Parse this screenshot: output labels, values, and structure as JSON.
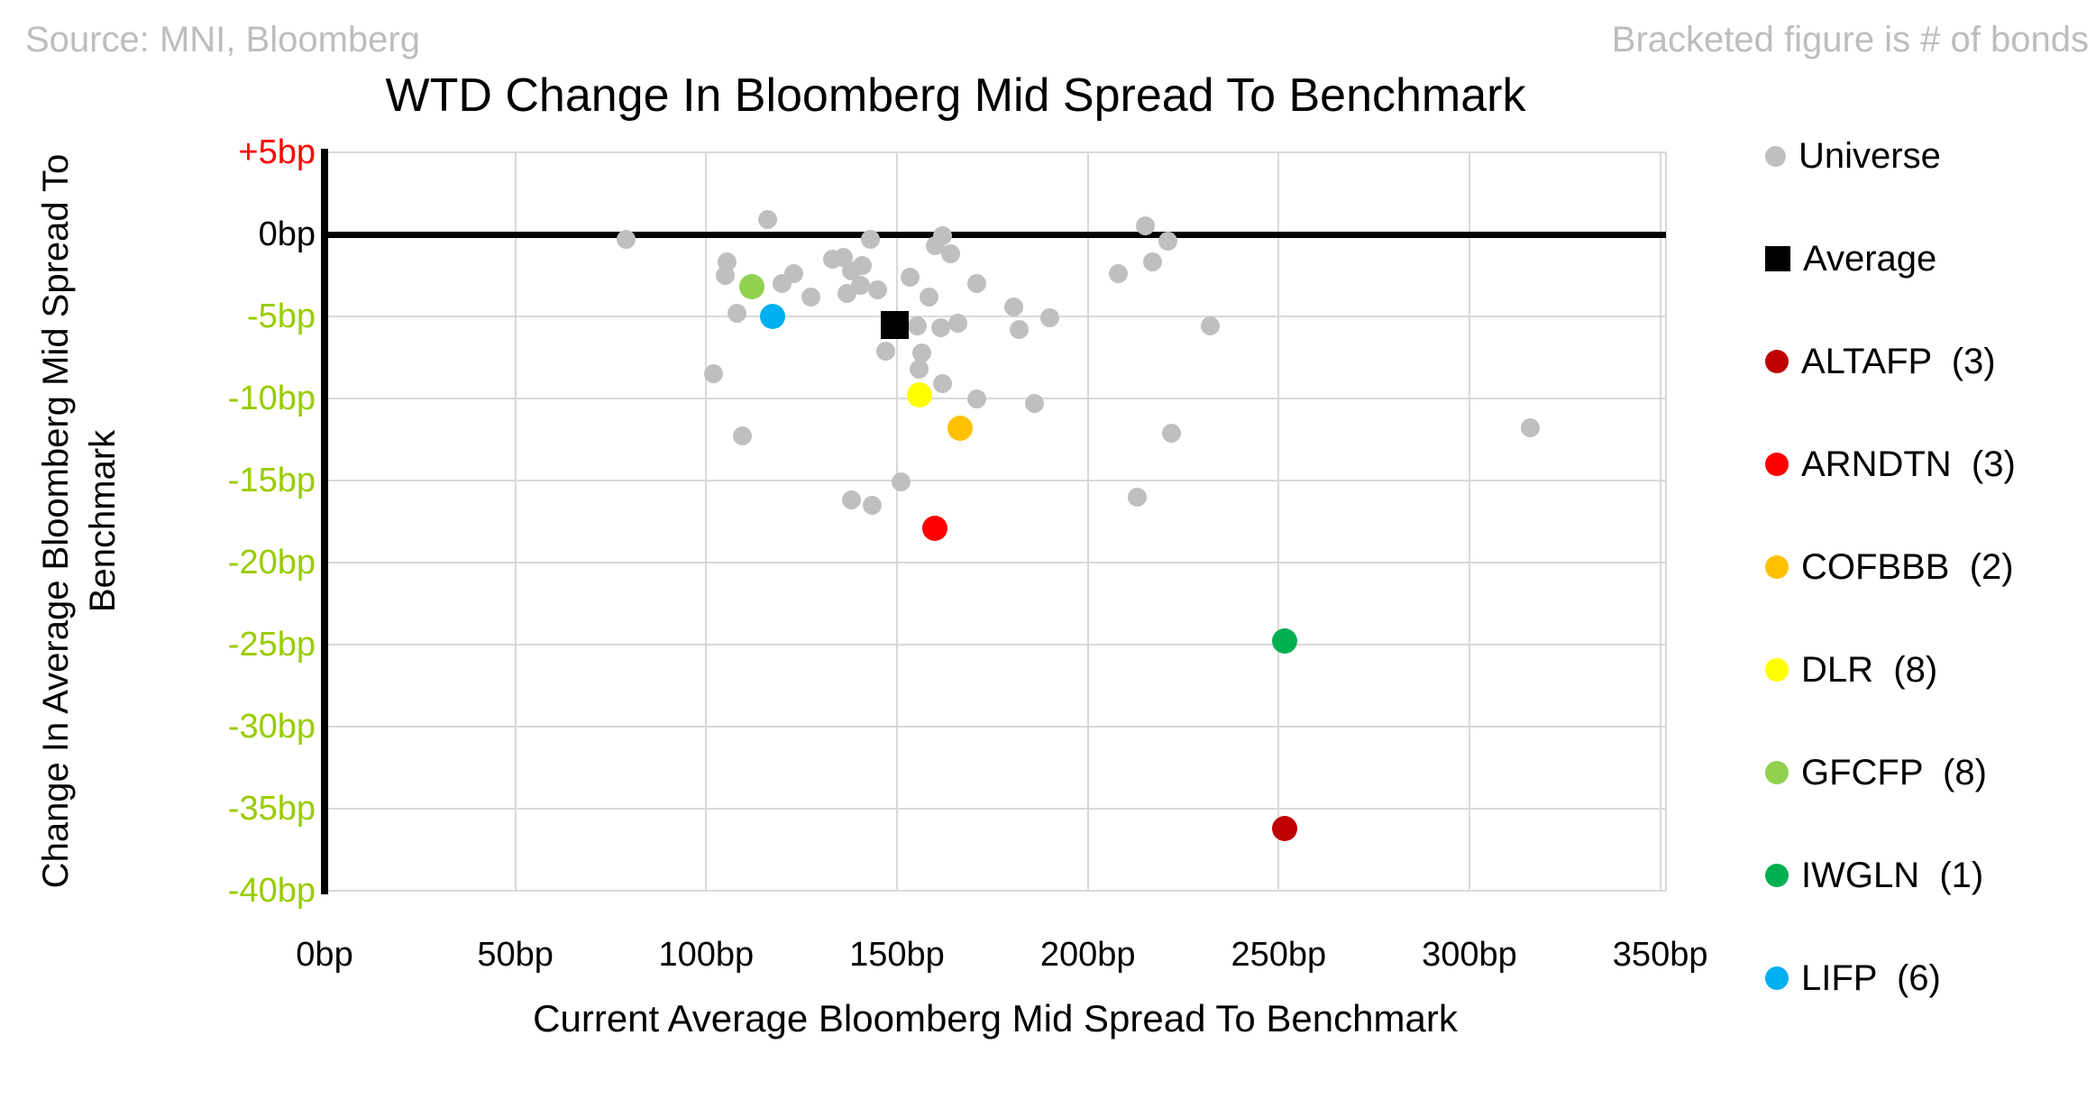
{
  "header": {
    "source": "Source: MNI, Bloomberg",
    "note": "Bracketed figure is # of bonds"
  },
  "chart_data": {
    "type": "scatter",
    "title": "WTD Change In Bloomberg Mid Spread To Benchmark",
    "xlabel": "Current Average Bloomberg Mid Spread To Benchmark",
    "ylabel_line1": "Change In Average Bloomberg Mid Spread To",
    "ylabel_line2": "Benchmark",
    "xlim": [
      0,
      351.5
    ],
    "ylim": [
      -40,
      5
    ],
    "grid": true,
    "legend_position": "right",
    "axis_colors": {
      "positive_tick": "#FF0000",
      "zero_tick": "#000000",
      "negative_tick": "#99CC00"
    },
    "x_ticks": [
      {
        "value": 0,
        "label": "0bp"
      },
      {
        "value": 50,
        "label": "50bp"
      },
      {
        "value": 100,
        "label": "100bp"
      },
      {
        "value": 150,
        "label": "150bp"
      },
      {
        "value": 200,
        "label": "200bp"
      },
      {
        "value": 250,
        "label": "250bp"
      },
      {
        "value": 300,
        "label": "300bp"
      },
      {
        "value": 350,
        "label": "350bp"
      }
    ],
    "y_ticks": [
      {
        "value": 5,
        "label": "+5bp",
        "color": "#FF0000"
      },
      {
        "value": 0,
        "label": "0bp",
        "color": "#000000"
      },
      {
        "value": -5,
        "label": "-5bp",
        "color": "#99CC00"
      },
      {
        "value": -10,
        "label": "-10bp",
        "color": "#99CC00"
      },
      {
        "value": -15,
        "label": "-15bp",
        "color": "#99CC00"
      },
      {
        "value": -20,
        "label": "-20bp",
        "color": "#99CC00"
      },
      {
        "value": -25,
        "label": "-25bp",
        "color": "#99CC00"
      },
      {
        "value": -30,
        "label": "-30bp",
        "color": "#99CC00"
      },
      {
        "value": -35,
        "label": "-35bp",
        "color": "#99CC00"
      },
      {
        "value": -40,
        "label": "-40bp",
        "color": "#99CC00"
      }
    ],
    "series": [
      {
        "name": "Universe",
        "legend_label": "Universe",
        "color": "#BFBFBF",
        "marker": "circle",
        "size": 21,
        "legend_size": 23,
        "points": [
          [
            79,
            -0.3
          ],
          [
            116,
            0.9
          ],
          [
            105.5,
            -1.7
          ],
          [
            105,
            -2.5
          ],
          [
            108,
            -4.8
          ],
          [
            102,
            -8.5
          ],
          [
            109.5,
            -12.3
          ],
          [
            120,
            -3.0
          ],
          [
            123,
            -2.4
          ],
          [
            127.5,
            -3.8
          ],
          [
            133,
            -1.5
          ],
          [
            136,
            -1.4
          ],
          [
            138,
            -2.2
          ],
          [
            141,
            -1.9
          ],
          [
            137,
            -3.6
          ],
          [
            140.5,
            -3.1
          ],
          [
            145,
            -3.4
          ],
          [
            143,
            -0.3
          ],
          [
            153.5,
            -2.6
          ],
          [
            158.5,
            -3.8
          ],
          [
            171,
            -3.0
          ],
          [
            160,
            -0.7
          ],
          [
            162,
            -0.1
          ],
          [
            164,
            -1.2
          ],
          [
            155.4,
            -5.6
          ],
          [
            161.5,
            -5.7
          ],
          [
            166,
            -5.4
          ],
          [
            147,
            -7.1
          ],
          [
            156.5,
            -7.2
          ],
          [
            155.8,
            -8.2
          ],
          [
            162,
            -9.1
          ],
          [
            171,
            -10.0
          ],
          [
            180.5,
            -4.4
          ],
          [
            182,
            -5.8
          ],
          [
            190,
            -5.1
          ],
          [
            186,
            -10.3
          ],
          [
            215,
            0.5
          ],
          [
            221,
            -0.4
          ],
          [
            217,
            -1.7
          ],
          [
            208,
            -2.4
          ],
          [
            232,
            -5.6
          ],
          [
            222,
            -12.1
          ],
          [
            213,
            -16.0
          ],
          [
            151,
            -15.1
          ],
          [
            138,
            -16.2
          ],
          [
            143.5,
            -16.5
          ],
          [
            316,
            -11.8
          ]
        ]
      },
      {
        "name": "Average",
        "legend_label": "Average",
        "color": "#000000",
        "marker": "square",
        "size": 31,
        "legend_size": 28,
        "points": [
          [
            149.5,
            -5.5
          ]
        ]
      },
      {
        "name": "ALTAFP",
        "legend_label": "ALTAFP  (3)",
        "bonds": 3,
        "color": "#C00000",
        "marker": "circle",
        "size": 28,
        "legend_size": 26,
        "points": [
          [
            251.5,
            -36.2
          ]
        ]
      },
      {
        "name": "ARNDTN",
        "legend_label": "ARNDTN  (3)",
        "bonds": 3,
        "color": "#FF0000",
        "marker": "circle",
        "size": 28,
        "legend_size": 26,
        "points": [
          [
            160,
            -17.9
          ]
        ]
      },
      {
        "name": "COFBBB",
        "legend_label": "COFBBB  (2)",
        "bonds": 2,
        "color": "#FFC000",
        "marker": "circle",
        "size": 28,
        "legend_size": 26,
        "points": [
          [
            166.5,
            -11.8
          ]
        ]
      },
      {
        "name": "DLR",
        "legend_label": "DLR  (8)",
        "bonds": 8,
        "color": "#FFFF00",
        "marker": "circle",
        "size": 28,
        "legend_size": 26,
        "points": [
          [
            156,
            -9.8
          ]
        ]
      },
      {
        "name": "GFCFP",
        "legend_label": "GFCFP  (8)",
        "bonds": 8,
        "color": "#92D050",
        "marker": "circle",
        "size": 28,
        "legend_size": 26,
        "points": [
          [
            112,
            -3.2
          ]
        ]
      },
      {
        "name": "IWGLN",
        "legend_label": "IWGLN  (1)",
        "bonds": 1,
        "color": "#00B050",
        "marker": "circle",
        "size": 28,
        "legend_size": 26,
        "points": [
          [
            251.5,
            -24.8
          ]
        ]
      },
      {
        "name": "LIFP",
        "legend_label": "LIFP  (6)",
        "bonds": 6,
        "color": "#00B0F0",
        "marker": "circle",
        "size": 28,
        "legend_size": 26,
        "points": [
          [
            117.5,
            -5.0
          ]
        ]
      }
    ]
  }
}
